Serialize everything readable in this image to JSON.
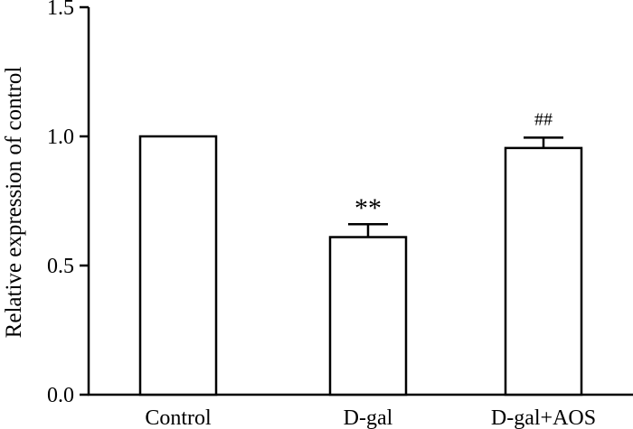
{
  "chart_data": {
    "type": "bar",
    "title": "",
    "xlabel": "",
    "ylabel": "Relative expression of control",
    "categories": [
      "Control",
      "D-gal",
      "D-gal+AOS"
    ],
    "values": [
      1.0,
      0.61,
      0.955
    ],
    "errors": [
      0.0,
      0.05,
      0.04
    ],
    "annotations": [
      "",
      "**",
      "##"
    ],
    "ylim": [
      0,
      1.5
    ],
    "yticks": [
      0,
      0.5,
      1.0,
      1.5
    ],
    "ytick_labels": [
      "0.0",
      "0.5",
      "1.0",
      "1.5"
    ],
    "grid": false,
    "legend": "none",
    "colors": {
      "bar_fill": "#ffffff",
      "bar_stroke": "#000000",
      "axis": "#000000",
      "text": "#000000"
    }
  }
}
